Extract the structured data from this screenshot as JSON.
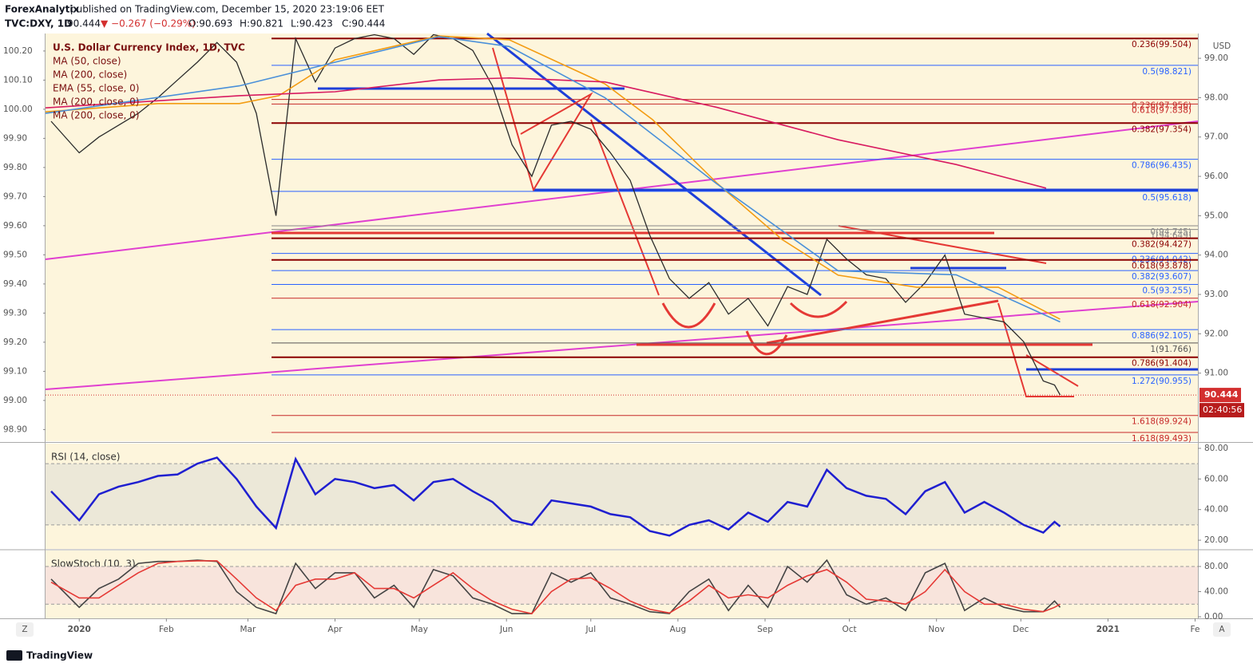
{
  "header": {
    "publisher": "ForexAnalytix",
    "published": "published on TradingView.com, December 15, 2020 23:19:06 EET",
    "symbol": "TVC:DXY, 1D",
    "last": "90.444",
    "change": "▼ −0.267 (−0.29%)",
    "ohlc": [
      "O:90.693",
      "H:90.821",
      "L:90.423",
      "C:90.444"
    ]
  },
  "chart_data": [
    {
      "type": "line",
      "y_unit": "USD",
      "xlim": [
        -12,
        398
      ],
      "ylim": [
        89.27,
        99.63
      ],
      "xticks": [
        {
          "value": 0,
          "label": "2020"
        },
        {
          "value": 31,
          "label": "Feb"
        },
        {
          "value": 60,
          "label": "Mar"
        },
        {
          "value": 91,
          "label": "Apr"
        },
        {
          "value": 121,
          "label": "May"
        },
        {
          "value": 152,
          "label": "Jun"
        },
        {
          "value": 182,
          "label": "Jul"
        },
        {
          "value": 213,
          "label": "Aug"
        },
        {
          "value": 244,
          "label": "Sep"
        },
        {
          "value": 274,
          "label": "Oct"
        },
        {
          "value": 305,
          "label": "Nov"
        },
        {
          "value": 335,
          "label": "Dec"
        },
        {
          "value": 366,
          "label": "2021"
        },
        {
          "value": 397,
          "label": "Fe"
        }
      ],
      "yticks": [
        {
          "value": 91,
          "label": "91.00"
        },
        {
          "value": 92,
          "label": "92.00"
        },
        {
          "value": 93,
          "label": "93.00"
        },
        {
          "value": 94,
          "label": "94.00"
        },
        {
          "value": 95,
          "label": "95.00"
        },
        {
          "value": 96,
          "label": "96.00"
        },
        {
          "value": 97,
          "label": "97.00"
        },
        {
          "value": 98,
          "label": "98.00"
        },
        {
          "value": 99,
          "label": "99.00"
        }
      ],
      "left_ylim": [
        98.86,
        100.26
      ],
      "left_yticks": [
        {
          "value": 98.9,
          "label": "98.90"
        },
        {
          "value": 99,
          "label": "99.00"
        },
        {
          "value": 99.1,
          "label": "99.10"
        },
        {
          "value": 99.2,
          "label": "99.20"
        },
        {
          "value": 99.3,
          "label": "99.30"
        },
        {
          "value": 99.4,
          "label": "99.40"
        },
        {
          "value": 99.5,
          "label": "99.50"
        },
        {
          "value": 99.6,
          "label": "99.60"
        },
        {
          "value": 99.7,
          "label": "99.70"
        },
        {
          "value": 99.8,
          "label": "99.80"
        },
        {
          "value": 99.9,
          "label": "99.90"
        },
        {
          "value": 100,
          "label": "100.00"
        },
        {
          "value": 100.1,
          "label": "100.10"
        },
        {
          "value": 100.2,
          "label": "100.20"
        }
      ],
      "last_price": 90.444,
      "countdown": "02:40:56",
      "series": [
        {
          "name": "U.S. Dollar Currency Index, 1D, TVC",
          "color": "#2b2b2b",
          "x": [
            -10,
            0,
            7,
            14,
            21,
            28,
            35,
            42,
            49,
            56,
            63,
            70,
            77,
            84,
            91,
            98,
            105,
            112,
            119,
            126,
            133,
            140,
            147,
            154,
            161,
            168,
            175,
            182,
            189,
            196,
            203,
            210,
            217,
            224,
            231,
            238,
            245,
            252,
            259,
            266,
            273,
            280,
            287,
            294,
            301,
            308,
            315,
            322,
            329,
            336,
            343,
            347,
            349
          ],
          "values": [
            97.4,
            96.6,
            97.0,
            97.3,
            97.6,
            98.0,
            98.45,
            98.9,
            99.4,
            98.9,
            97.6,
            95.0,
            99.5,
            98.4,
            99.26,
            99.5,
            99.6,
            99.5,
            99.1,
            99.6,
            99.5,
            99.2,
            98.3,
            96.8,
            96.0,
            97.3,
            97.4,
            97.2,
            96.6,
            95.9,
            94.5,
            93.4,
            92.9,
            93.3,
            92.5,
            92.9,
            92.2,
            93.2,
            93.0,
            94.4,
            93.9,
            93.5,
            93.4,
            92.8,
            93.3,
            94.0,
            92.5,
            92.4,
            92.3,
            91.8,
            90.8,
            90.7,
            90.444
          ]
        },
        {
          "name": "MA (50, close)",
          "color": "#f39c12",
          "x": [
            -12,
            28,
            57,
            71,
            91,
            128,
            153,
            187,
            204,
            227,
            250,
            270,
            298,
            327,
            349
          ],
          "values": [
            97.64,
            97.85,
            97.85,
            98.05,
            98.96,
            99.57,
            99.47,
            98.35,
            97.44,
            95.82,
            94.4,
            93.49,
            93.18,
            93.18,
            92.37
          ]
        },
        {
          "name": "MA (200, close)",
          "color": "#d81b60",
          "x": [
            -12,
            57,
            91,
            128,
            153,
            187,
            227,
            270,
            312,
            344
          ],
          "values": [
            97.74,
            98.05,
            98.15,
            98.45,
            98.5,
            98.4,
            97.75,
            96.93,
            96.3,
            95.7
          ]
        },
        {
          "name": "EMA (55, close, 0)",
          "color": "#4a90d9",
          "x": [
            -12,
            57,
            91,
            128,
            153,
            187,
            227,
            270,
            312,
            349
          ],
          "values": [
            97.6,
            98.3,
            98.9,
            99.55,
            99.3,
            98.0,
            95.8,
            93.6,
            93.5,
            92.3
          ]
        }
      ],
      "other_indicators": [
        "MA (200, close, 0)",
        "MA (200, close, 0)"
      ],
      "levels": [
        {
          "label": "0.236(99.504)",
          "value": 99.504,
          "color": "#8b0000"
        },
        {
          "label": "0.5(98.821)",
          "value": 98.821,
          "color": "#2962ff"
        },
        {
          "label": "0.236(97.956)",
          "value": 97.956,
          "color": "#c62828"
        },
        {
          "label": "0.618(97.838)",
          "value": 97.838,
          "color": "#c62828"
        },
        {
          "label": "0.382(97.354)",
          "value": 97.354,
          "color": "#8b0000"
        },
        {
          "label": "0.786(96.435)",
          "value": 96.435,
          "color": "#2962ff"
        },
        {
          "label": "0.5(95.618)",
          "value": 95.618,
          "color": "#2962ff"
        },
        {
          "label": "0(94.745)",
          "value": 94.745,
          "color": "#888888"
        },
        {
          "label": "1(94.649)",
          "value": 94.649,
          "color": "#888888"
        },
        {
          "label": "0.382(94.427)",
          "value": 94.427,
          "color": "#8b0000"
        },
        {
          "label": "0.236(94.042)",
          "value": 94.042,
          "color": "#2962ff"
        },
        {
          "label": "0.618(93.878)",
          "value": 93.878,
          "color": "#8b0000"
        },
        {
          "label": "0.382(93.607)",
          "value": 93.607,
          "color": "#2962ff"
        },
        {
          "label": "0.5(93.255)",
          "value": 93.255,
          "color": "#2962ff"
        },
        {
          "label": "0.618(92.904)",
          "value": 92.904,
          "color": "#c62828"
        },
        {
          "label": "0.886(92.105)",
          "value": 92.105,
          "color": "#2962ff"
        },
        {
          "label": "1(91.766)",
          "value": 91.766,
          "color": "#555555"
        },
        {
          "label": "0.786(91.404)",
          "value": 91.404,
          "color": "#8b0000"
        },
        {
          "label": "1.272(90.955)",
          "value": 90.955,
          "color": "#2962ff"
        },
        {
          "label": "1.618(89.924)",
          "value": 89.924,
          "color": "#c62828"
        },
        {
          "label": "1.618(89.493)",
          "value": 89.493,
          "color": "#c62828"
        }
      ]
    },
    {
      "type": "line",
      "title": "RSI (14, close)",
      "xlim": [
        -12,
        398
      ],
      "ylim": [
        14.3,
        83.1
      ],
      "color": "#1f1fd0",
      "levels": [
        30,
        70
      ],
      "yticks": [
        {
          "value": 20,
          "label": "20.00"
        },
        {
          "value": 40,
          "label": "40.00"
        },
        {
          "value": 60,
          "label": "60.00"
        },
        {
          "value": 80,
          "label": "80.00"
        }
      ],
      "x": [
        -10,
        0,
        7,
        14,
        21,
        28,
        35,
        42,
        49,
        56,
        63,
        70,
        77,
        84,
        91,
        98,
        105,
        112,
        119,
        126,
        133,
        140,
        147,
        154,
        161,
        168,
        175,
        182,
        189,
        196,
        203,
        210,
        217,
        224,
        231,
        238,
        245,
        252,
        259,
        266,
        273,
        280,
        287,
        294,
        301,
        308,
        315,
        322,
        329,
        336,
        343,
        347,
        349
      ],
      "values": [
        52,
        33,
        50,
        55,
        58,
        62,
        63,
        70,
        74,
        60,
        42,
        28,
        73,
        50,
        60,
        58,
        54,
        56,
        46,
        58,
        60,
        52,
        45,
        33,
        30,
        46,
        44,
        42,
        37,
        35,
        26,
        23,
        30,
        33,
        27,
        38,
        32,
        45,
        42,
        66,
        54,
        49,
        47,
        37,
        52,
        58,
        38,
        45,
        38,
        30,
        25,
        32,
        29
      ]
    },
    {
      "type": "line",
      "title": "SlowStoch (10, 3)",
      "xlim": [
        -12,
        398
      ],
      "ylim": [
        -2.5,
        105.4
      ],
      "levels": [
        20,
        80
      ],
      "yticks": [
        {
          "value": 0,
          "label": "0.00"
        },
        {
          "value": 40,
          "label": "40.00"
        },
        {
          "value": 80,
          "label": "80.00"
        }
      ],
      "x": [
        -10,
        0,
        7,
        14,
        21,
        28,
        35,
        42,
        49,
        56,
        63,
        70,
        77,
        84,
        91,
        98,
        105,
        112,
        119,
        126,
        133,
        140,
        147,
        154,
        161,
        168,
        175,
        182,
        189,
        196,
        203,
        210,
        217,
        224,
        231,
        238,
        245,
        252,
        259,
        266,
        273,
        280,
        287,
        294,
        301,
        308,
        315,
        322,
        329,
        336,
        343,
        347,
        349
      ],
      "series": [
        {
          "color": "#444444",
          "values": [
            60,
            15,
            45,
            60,
            85,
            88,
            88,
            90,
            88,
            40,
            15,
            5,
            85,
            45,
            70,
            70,
            30,
            50,
            15,
            75,
            65,
            30,
            20,
            5,
            5,
            70,
            55,
            70,
            30,
            20,
            8,
            5,
            40,
            60,
            10,
            50,
            15,
            80,
            55,
            90,
            35,
            20,
            30,
            10,
            70,
            85,
            10,
            30,
            15,
            8,
            8,
            25,
            15
          ]
        },
        {
          "color": "#e53935",
          "values": [
            55,
            30,
            30,
            50,
            70,
            85,
            88,
            89,
            89,
            60,
            30,
            10,
            50,
            60,
            60,
            70,
            45,
            45,
            30,
            50,
            70,
            45,
            25,
            12,
            5,
            40,
            60,
            62,
            45,
            25,
            12,
            6,
            25,
            50,
            30,
            35,
            30,
            50,
            65,
            75,
            55,
            28,
            25,
            20,
            40,
            75,
            40,
            20,
            20,
            12,
            8,
            15,
            20
          ]
        }
      ]
    }
  ],
  "axis_buttons": {
    "left": "Z",
    "right": "A"
  },
  "footer": {
    "brand": "TradingView"
  }
}
